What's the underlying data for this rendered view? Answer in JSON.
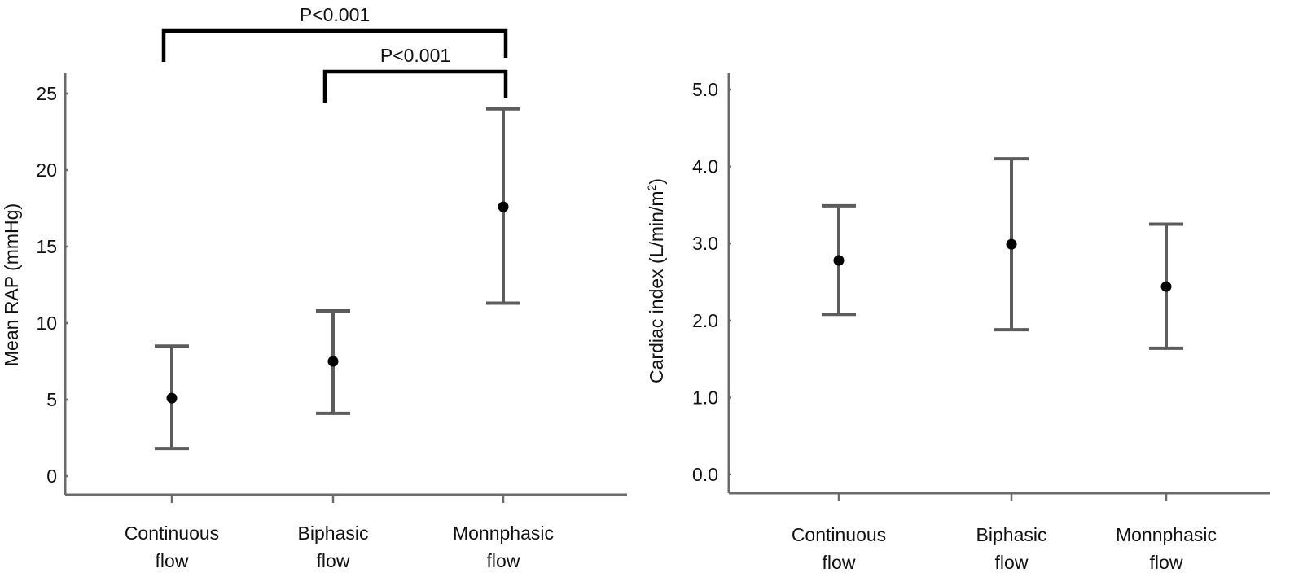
{
  "chart_data": [
    {
      "type": "scatter",
      "error_bars": true,
      "categories": [
        [
          "Continuous",
          "flow"
        ],
        [
          "Biphasic",
          "flow"
        ],
        [
          "Monnphasic",
          "flow"
        ]
      ],
      "ylabel": "Mean RAP (mmHg)",
      "ylim": [
        0,
        25
      ],
      "yticks": [
        "0",
        "5",
        "10",
        "15",
        "20",
        "25"
      ],
      "ytick_values": [
        0,
        5,
        10,
        15,
        20,
        25
      ],
      "series": [
        {
          "means": [
            5.1,
            7.5,
            17.6
          ],
          "lower": [
            1.8,
            4.1,
            11.3
          ],
          "upper": [
            8.5,
            10.8,
            24.0
          ]
        }
      ],
      "comparisons": [
        {
          "from": 0,
          "to": 2,
          "label": "P<0.001"
        },
        {
          "from": 1,
          "to": 2,
          "label": "P<0.001"
        }
      ]
    },
    {
      "type": "scatter",
      "error_bars": true,
      "categories": [
        [
          "Continuous",
          "flow"
        ],
        [
          "Biphasic",
          "flow"
        ],
        [
          "Monnphasic",
          "flow"
        ]
      ],
      "ylabel": "Cardiac index (L/min/m",
      "ylabel_sup": "2",
      "ylabel_suffix": ")",
      "ylim": [
        0,
        5
      ],
      "yticks": [
        "0.0",
        "1.0",
        "2.0",
        "3.0",
        "4.0",
        "5.0"
      ],
      "ytick_values": [
        0,
        1,
        2,
        3,
        4,
        5
      ],
      "series": [
        {
          "means": [
            2.78,
            2.99,
            2.44
          ],
          "lower": [
            2.08,
            1.88,
            1.64
          ],
          "upper": [
            3.49,
            4.1,
            3.25
          ]
        }
      ],
      "comparisons": []
    }
  ]
}
